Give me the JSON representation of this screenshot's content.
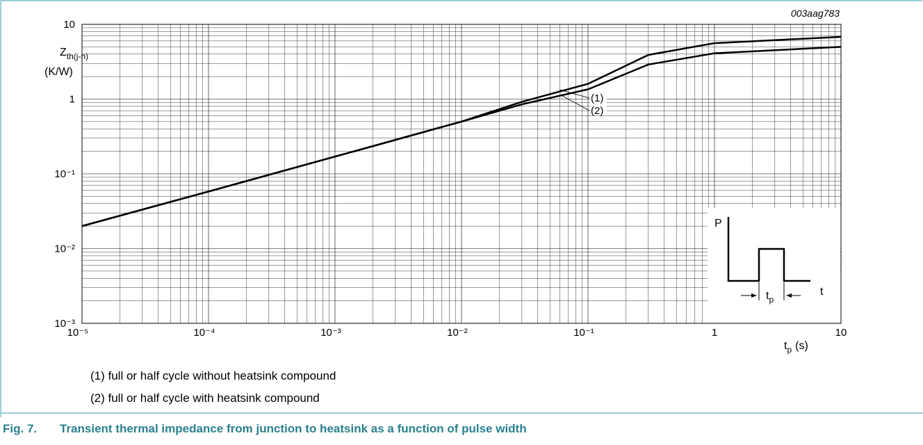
{
  "chart_data": {
    "type": "line",
    "code": "003aag783",
    "ylabel": {
      "symbol": "Z",
      "subscript": "th(j-h)",
      "unit": "(K/W)"
    },
    "xlabel": {
      "symbol": "t",
      "subscript": "p",
      "unit": "(s)"
    },
    "xscale": "log",
    "yscale": "log",
    "grid": true,
    "minor_grid": true,
    "xlim": [
      1e-05,
      10
    ],
    "xticks": [
      {
        "value": 1e-05,
        "label": "10⁻⁵"
      },
      {
        "value": 0.0001,
        "label": "10⁻⁴"
      },
      {
        "value": 0.001,
        "label": "10⁻³"
      },
      {
        "value": 0.01,
        "label": "10⁻²"
      },
      {
        "value": 0.1,
        "label": "10⁻¹"
      },
      1,
      10
    ],
    "ylim": [
      0.001,
      10
    ],
    "yticks": [
      {
        "value": 0.001,
        "label": "10⁻³"
      },
      {
        "value": 0.01,
        "label": "10⁻²"
      },
      {
        "value": 0.1,
        "label": "10⁻¹"
      },
      1,
      10
    ],
    "x": [
      1e-05,
      0.0001,
      0.001,
      0.01,
      0.03,
      0.1,
      0.3,
      1,
      10
    ],
    "series": [
      {
        "name": "(1)",
        "color": "#000000",
        "values": [
          0.02,
          0.058,
          0.17,
          0.5,
          0.92,
          1.6,
          3.9,
          5.6,
          6.8
        ]
      },
      {
        "name": "(2)",
        "color": "#000000",
        "values": [
          0.02,
          0.058,
          0.17,
          0.5,
          0.85,
          1.35,
          2.9,
          4.1,
          5.0
        ]
      }
    ],
    "notes": [
      "(1) full or half cycle without heatsink compound",
      "(2) full or half cycle with heatsink compound"
    ],
    "inset": {
      "power": "P",
      "time": "t",
      "pulse": {
        "symbol": "t",
        "subscript": "p"
      }
    },
    "figure_number": "Fig. 7.",
    "caption": "Transient thermal impedance from junction to heatsink as a function of pulse width"
  }
}
